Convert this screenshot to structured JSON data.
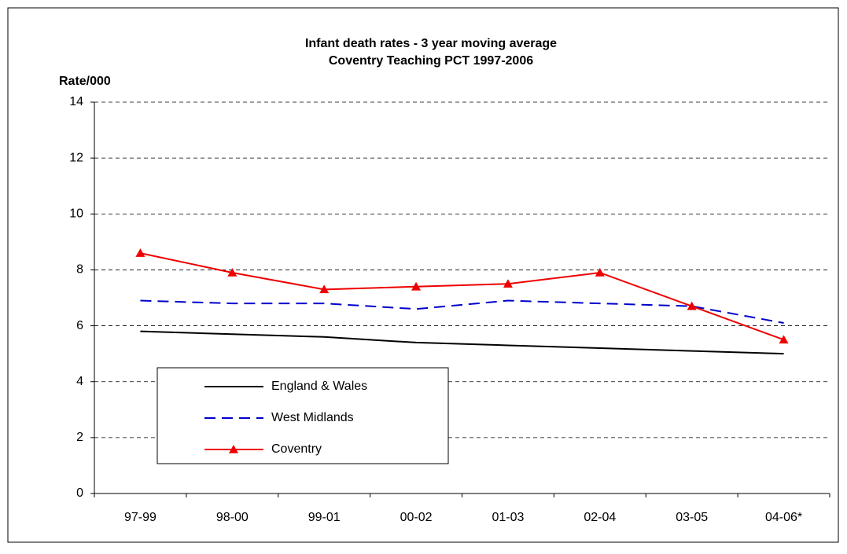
{
  "chart_data": {
    "type": "line",
    "title": "Infant death rates - 3 year moving average",
    "subtitle": "Coventry Teaching PCT 1997-2006",
    "y_label": "Rate/000",
    "categories": [
      "97-99",
      "98-00",
      "99-01",
      "00-02",
      "01-03",
      "02-04",
      "03-05",
      "04-06*"
    ],
    "series": [
      {
        "name": "England & Wales",
        "color": "#000000",
        "values": [
          5.8,
          5.7,
          5.6,
          5.4,
          5.3,
          5.2,
          5.1,
          5.0
        ]
      },
      {
        "name": "West Midlands",
        "color": "#0000cc",
        "dashed": true,
        "values": [
          6.9,
          6.8,
          6.8,
          6.6,
          6.9,
          6.8,
          6.7,
          6.1
        ]
      },
      {
        "name": "Coventry",
        "color": "#ee0000",
        "marker": "triangle",
        "values": [
          8.6,
          7.9,
          7.3,
          7.4,
          7.5,
          7.9,
          6.7,
          5.5
        ]
      }
    ],
    "ylim": [
      0,
      14
    ],
    "yticks": [
      0,
      2,
      4,
      6,
      8,
      10,
      12,
      14
    ],
    "grid": true,
    "legend": "lower left"
  }
}
